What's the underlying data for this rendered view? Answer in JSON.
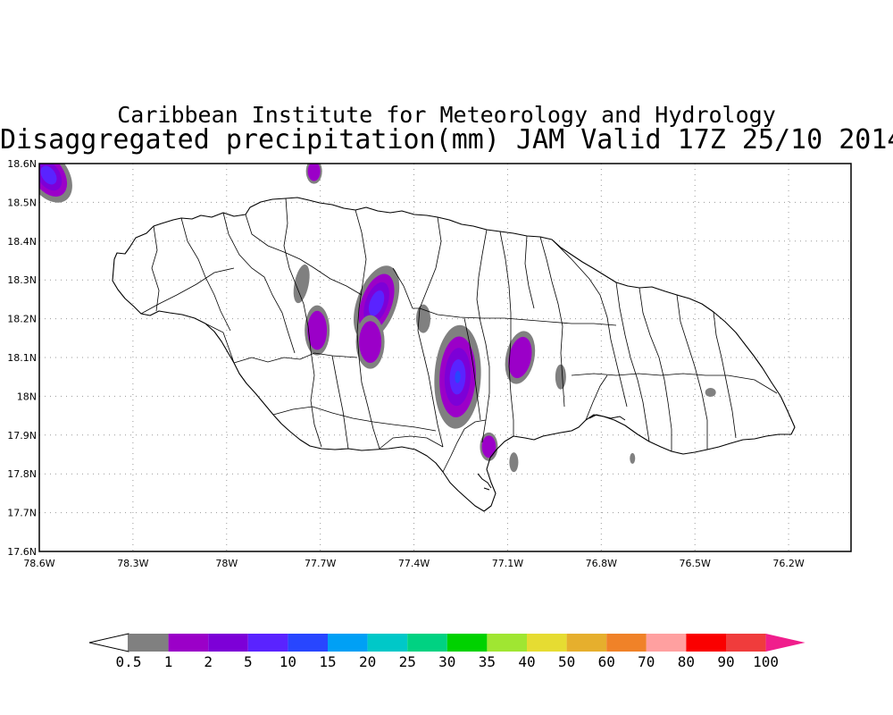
{
  "header": {
    "title_line1": "Caribbean Institute for Meteorology and Hydrology",
    "title_line2": "Disaggregated precipitation(mm) JAM Valid 17Z 25/10 2014"
  },
  "map": {
    "region": "Jamaica",
    "lat_labels": [
      "18.6N",
      "18.5N",
      "18.4N",
      "18.3N",
      "18.2N",
      "18.1N",
      "18N",
      "17.9N",
      "17.8N",
      "17.7N",
      "17.6N"
    ],
    "lon_labels": [
      "78.6W",
      "78.3W",
      "78W",
      "77.7W",
      "77.4W",
      "77.1W",
      "76.8W",
      "76.5W",
      "76.2W"
    ],
    "lat_range": [
      17.6,
      18.6
    ],
    "lon_range": [
      -78.6,
      -76.0
    ],
    "grid": "dotted",
    "precip_cells": [
      {
        "lon": -78.57,
        "lat": 18.57,
        "class": "5-10"
      },
      {
        "lon": -77.72,
        "lat": 18.58,
        "class": "1-2"
      },
      {
        "lon": -77.76,
        "lat": 18.29,
        "class": "0.5-1"
      },
      {
        "lon": -77.71,
        "lat": 18.17,
        "class": "1-2"
      },
      {
        "lon": -77.52,
        "lat": 18.24,
        "class": "5-10"
      },
      {
        "lon": -77.54,
        "lat": 18.14,
        "class": "1-2"
      },
      {
        "lon": -77.37,
        "lat": 18.2,
        "class": "0.5-1"
      },
      {
        "lon": -77.26,
        "lat": 18.05,
        "class": "10-15"
      },
      {
        "lon": -77.16,
        "lat": 17.87,
        "class": "1-2"
      },
      {
        "lon": -77.06,
        "lat": 18.1,
        "class": "1-2"
      },
      {
        "lon": -76.93,
        "lat": 18.05,
        "class": "0.5-1"
      },
      {
        "lon": -77.08,
        "lat": 17.83,
        "class": "0.5-1"
      },
      {
        "lon": -76.45,
        "lat": 18.01,
        "class": "0.5-1"
      },
      {
        "lon": -76.7,
        "lat": 17.84,
        "class": "0.5-1"
      }
    ]
  },
  "legend": {
    "labels": [
      "0.5",
      "1",
      "2",
      "5",
      "10",
      "15",
      "20",
      "25",
      "30",
      "35",
      "40",
      "50",
      "60",
      "70",
      "80",
      "90",
      "100"
    ],
    "colors": [
      "#808080",
      "#9b00c8",
      "#7d00d7",
      "#5a23ff",
      "#2846ff",
      "#00a0f5",
      "#00c8c8",
      "#00d282",
      "#00d200",
      "#a0e632",
      "#e6dc32",
      "#e6af2d",
      "#f08228",
      "#ffa0a0",
      "#fa0000",
      "#f03c3c"
    ],
    "under_color": "#ffffff",
    "over_color": "#f01e8c"
  }
}
